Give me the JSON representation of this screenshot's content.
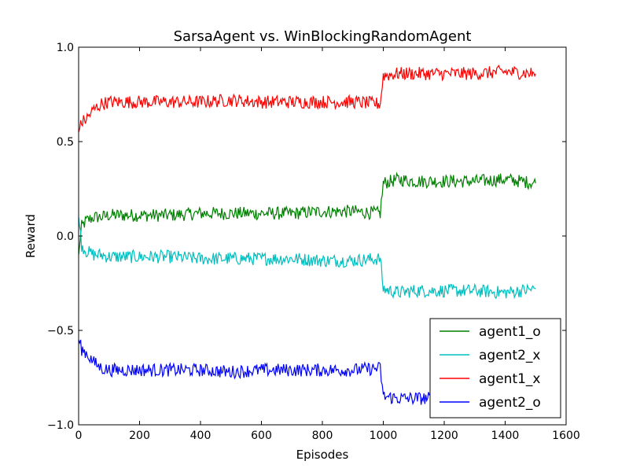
{
  "chart_data": {
    "type": "line",
    "title": "SarsaAgent vs. WinBlockingRandomAgent",
    "xlabel": "Episodes",
    "ylabel": "Reward",
    "xlim": [
      0,
      1600
    ],
    "ylim": [
      -1.0,
      1.0
    ],
    "xticks": [
      "0",
      "200",
      "400",
      "600",
      "800",
      "1000",
      "1200",
      "1400",
      "1600"
    ],
    "yticks": [
      "1.0",
      "0.5",
      "0.0",
      "−0.5",
      "−1.0"
    ],
    "grid": false,
    "legend_position": "bottom-right",
    "x": [
      0,
      10,
      25,
      50,
      75,
      100,
      150,
      200,
      300,
      400,
      500,
      600,
      700,
      800,
      900,
      990,
      1000,
      1050,
      1100,
      1200,
      1300,
      1400,
      1500
    ],
    "series": [
      {
        "name": "agent1_o",
        "color": "#008000",
        "values": [
          -0.1,
          0.05,
          0.08,
          0.1,
          0.1,
          0.11,
          0.11,
          0.11,
          0.11,
          0.12,
          0.12,
          0.12,
          0.12,
          0.13,
          0.13,
          0.12,
          0.28,
          0.3,
          0.29,
          0.29,
          0.29,
          0.3,
          0.28
        ]
      },
      {
        "name": "agent2_x",
        "color": "#00bfbf",
        "values": [
          0.1,
          -0.05,
          -0.08,
          -0.1,
          -0.1,
          -0.11,
          -0.11,
          -0.11,
          -0.11,
          -0.12,
          -0.12,
          -0.12,
          -0.12,
          -0.13,
          -0.13,
          -0.12,
          -0.28,
          -0.3,
          -0.29,
          -0.29,
          -0.29,
          -0.3,
          -0.28
        ]
      },
      {
        "name": "agent1_x",
        "color": "#ff0000",
        "values": [
          0.55,
          0.6,
          0.62,
          0.67,
          0.7,
          0.71,
          0.71,
          0.71,
          0.71,
          0.71,
          0.72,
          0.71,
          0.71,
          0.71,
          0.71,
          0.7,
          0.85,
          0.86,
          0.86,
          0.86,
          0.86,
          0.87,
          0.86
        ]
      },
      {
        "name": "agent2_o",
        "color": "#0000ff",
        "values": [
          -0.55,
          -0.6,
          -0.62,
          -0.67,
          -0.7,
          -0.71,
          -0.71,
          -0.71,
          -0.71,
          -0.71,
          -0.72,
          -0.71,
          -0.71,
          -0.71,
          -0.71,
          -0.7,
          -0.85,
          -0.86,
          -0.86,
          -0.86,
          -0.86,
          -0.87,
          -0.86
        ]
      }
    ]
  }
}
